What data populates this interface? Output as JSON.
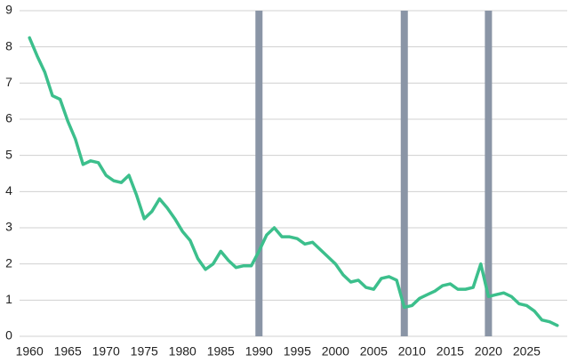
{
  "chart_data": {
    "type": "line",
    "x": [
      1960,
      1961,
      1962,
      1963,
      1964,
      1965,
      1966,
      1967,
      1968,
      1969,
      1970,
      1971,
      1972,
      1973,
      1974,
      1975,
      1976,
      1977,
      1978,
      1979,
      1980,
      1981,
      1982,
      1983,
      1984,
      1985,
      1986,
      1987,
      1988,
      1989,
      1990,
      1991,
      1992,
      1993,
      1994,
      1995,
      1996,
      1997,
      1998,
      1999,
      2000,
      2001,
      2002,
      2003,
      2004,
      2005,
      2006,
      2007,
      2008,
      2009,
      2010,
      2011,
      2012,
      2013,
      2014,
      2015,
      2016,
      2017,
      2018,
      2019,
      2020,
      2021,
      2022,
      2023,
      2024,
      2025,
      2026,
      2027,
      2028,
      2029
    ],
    "values": [
      8.25,
      7.75,
      7.3,
      6.65,
      6.55,
      5.95,
      5.45,
      4.75,
      4.85,
      4.8,
      4.45,
      4.3,
      4.25,
      4.45,
      3.9,
      3.25,
      3.45,
      3.8,
      3.55,
      3.25,
      2.9,
      2.65,
      2.15,
      1.85,
      2.0,
      2.35,
      2.1,
      1.9,
      1.95,
      1.95,
      2.35,
      2.8,
      3.0,
      2.75,
      2.75,
      2.7,
      2.55,
      2.6,
      2.4,
      2.2,
      2.0,
      1.7,
      1.5,
      1.55,
      1.35,
      1.3,
      1.6,
      1.65,
      1.55,
      0.8,
      0.85,
      1.05,
      1.15,
      1.25,
      1.4,
      1.45,
      1.3,
      1.3,
      1.35,
      2.0,
      1.1,
      1.15,
      1.2,
      1.1,
      0.9,
      0.85,
      0.7,
      0.45,
      0.4,
      0.3
    ],
    "color": "#3cbf8c",
    "recessions": [
      1990,
      2009,
      2020
    ],
    "recession_color": "#8a95a6",
    "xlim": [
      1958.7,
      2030.3
    ],
    "xticks": [
      1960,
      1965,
      1970,
      1975,
      1980,
      1985,
      1990,
      1995,
      2000,
      2005,
      2010,
      2015,
      2020,
      2025
    ],
    "ylim": [
      0,
      9
    ],
    "yticks": [
      0,
      1,
      2,
      3,
      4,
      5,
      6,
      7,
      8,
      9
    ],
    "grid": true
  }
}
